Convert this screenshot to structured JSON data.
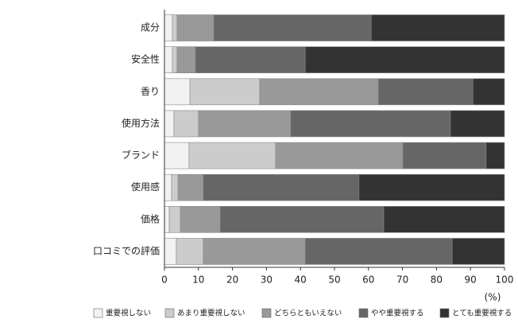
{
  "chart_data": {
    "type": "stacked-bar-horizontal",
    "categories": [
      "成分",
      "安全性",
      "香り",
      "使用方法",
      "ブランド",
      "使用感",
      "価格",
      "口コミでの評価"
    ],
    "series": [
      {
        "name": "重要視しない",
        "color": "#f2f2f2",
        "values": [
          2.3,
          2.3,
          7.5,
          2.8,
          7.2,
          2.1,
          1.4,
          3.5
        ]
      },
      {
        "name": "あまり重要視しない",
        "color": "#cccccc",
        "values": [
          1.4,
          1.4,
          20.5,
          7.2,
          25.5,
          1.9,
          3.3,
          7.9
        ]
      },
      {
        "name": "どちらともいえない",
        "color": "#999999",
        "values": [
          10.8,
          5.4,
          34.9,
          27.1,
          37.4,
          7.4,
          11.7,
          30.0
        ]
      },
      {
        "name": "やや重要視する",
        "color": "#666666",
        "values": [
          46.3,
          32.3,
          27.8,
          47.0,
          24.5,
          45.8,
          48.1,
          43.2
        ]
      },
      {
        "name": "とても重要視する",
        "color": "#333333",
        "values": [
          39.2,
          58.6,
          9.3,
          15.9,
          5.4,
          42.8,
          35.5,
          15.4
        ]
      }
    ],
    "xlim": [
      0,
      100
    ],
    "xticks": [
      0,
      10,
      20,
      30,
      40,
      50,
      60,
      70,
      80,
      90,
      100
    ],
    "x_axis_label": "(%)"
  }
}
